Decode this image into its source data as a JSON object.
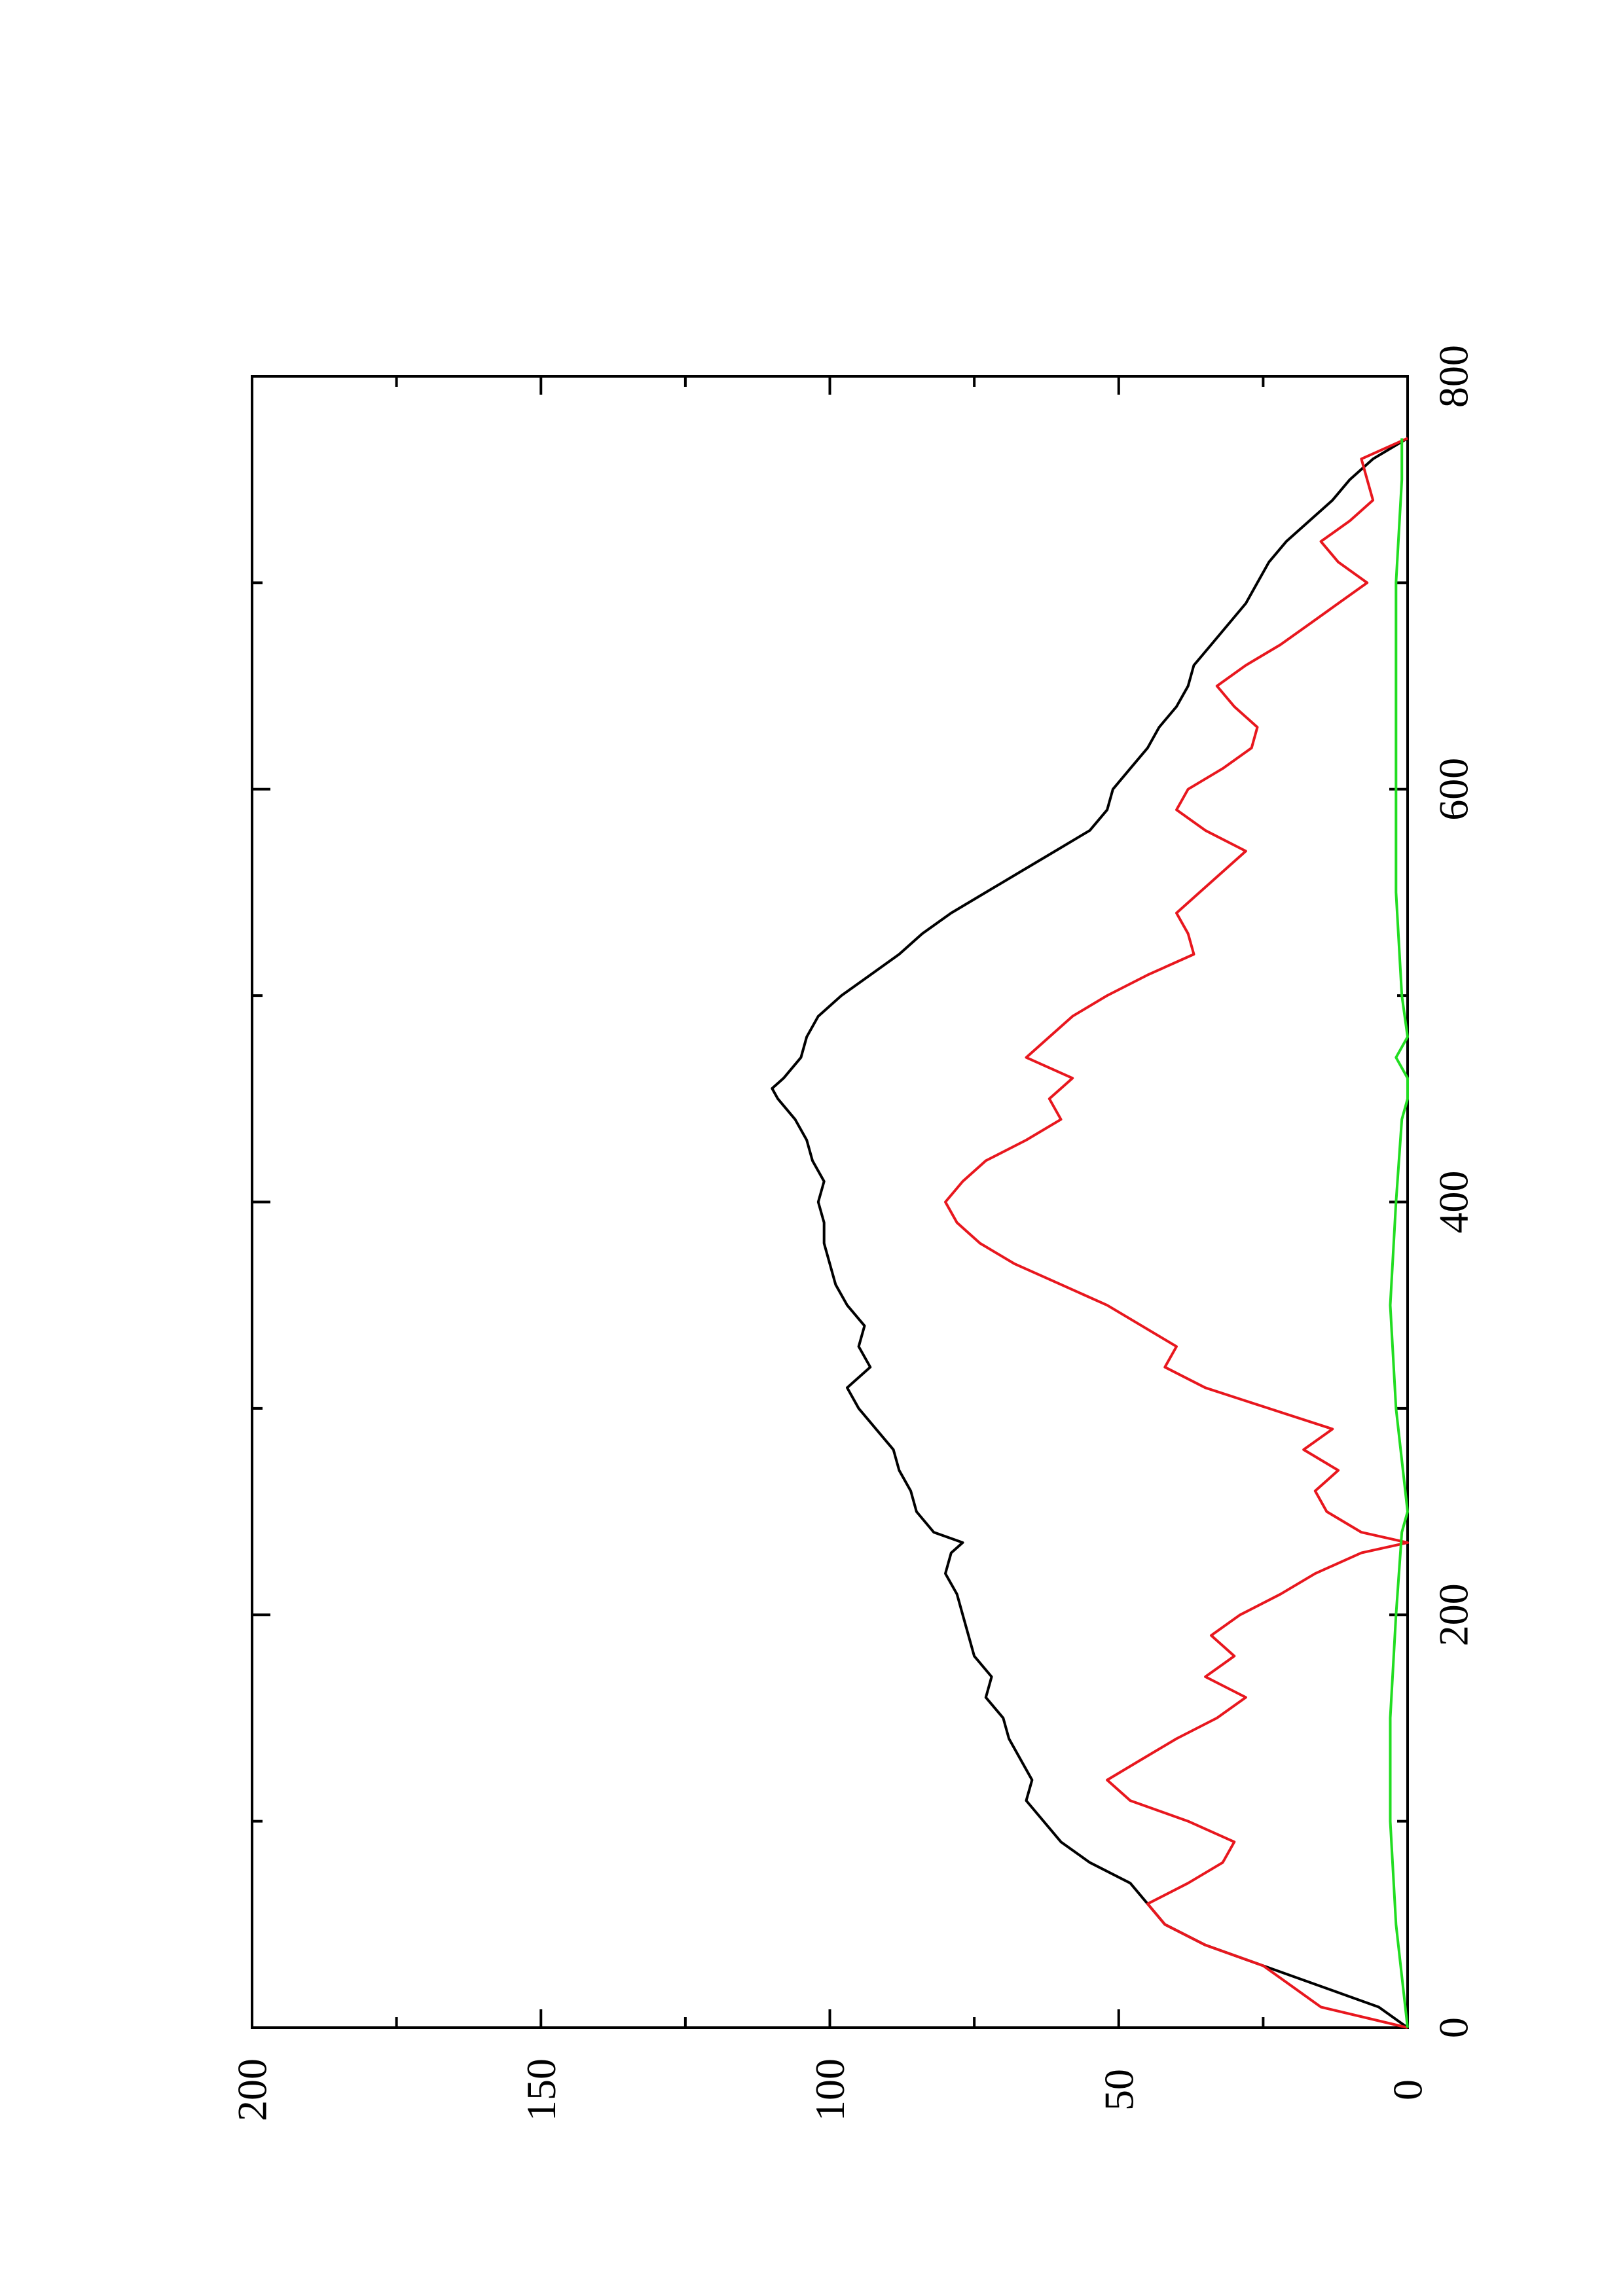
{
  "chart_data": {
    "type": "line",
    "orientation": "rotated 90 degrees counter-clockwise",
    "title": "",
    "xlabel": "",
    "ylabel": "",
    "xlim": [
      0,
      800
    ],
    "ylim": [
      0,
      200
    ],
    "x_ticks": [
      0,
      200,
      400,
      600,
      800
    ],
    "x_ticks_minor": [
      100,
      300,
      500,
      700
    ],
    "y_ticks": [
      0,
      50,
      100,
      150,
      200
    ],
    "y_ticks_minor": [
      25,
      75,
      125,
      175
    ],
    "x_tick_labels": [
      "0",
      "200",
      "400",
      "600",
      "800"
    ],
    "y_tick_labels": [
      "0",
      "50",
      "100",
      "150",
      "200"
    ],
    "grid": false,
    "legend": "none",
    "series": [
      {
        "color": "#000000",
        "x": [
          0,
          10,
          20,
          30,
          40,
          50,
          60,
          70,
          80,
          90,
          100,
          110,
          120,
          130,
          140,
          150,
          160,
          170,
          180,
          190,
          200,
          210,
          220,
          230,
          235,
          240,
          250,
          260,
          270,
          280,
          290,
          300,
          310,
          320,
          330,
          340,
          350,
          360,
          370,
          380,
          390,
          400,
          410,
          420,
          430,
          440,
          450,
          455,
          460,
          470,
          480,
          490,
          500,
          510,
          520,
          530,
          540,
          550,
          560,
          570,
          580,
          590,
          600,
          610,
          620,
          630,
          640,
          650,
          660,
          670,
          680,
          690,
          700,
          710,
          720,
          730,
          740,
          750,
          760,
          770
        ],
        "y": [
          0,
          5,
          15,
          25,
          35,
          42,
          45,
          48,
          55,
          60,
          63,
          66,
          65,
          67,
          69,
          70,
          73,
          72,
          75,
          76,
          77,
          78,
          80,
          79,
          77,
          82,
          85,
          86,
          88,
          89,
          92,
          95,
          97,
          93,
          95,
          94,
          97,
          99,
          100,
          101,
          101,
          102,
          101,
          103,
          104,
          106,
          109,
          110,
          108,
          105,
          104,
          102,
          98,
          93,
          88,
          84,
          79,
          73,
          67,
          61,
          55,
          52,
          51,
          48,
          45,
          43,
          40,
          38,
          37,
          34,
          31,
          28,
          26,
          24,
          21,
          17,
          13,
          10,
          6,
          0
        ]
      },
      {
        "color": "#e8171e",
        "x": [
          0,
          10,
          20,
          30,
          40,
          50,
          60,
          70,
          80,
          90,
          100,
          110,
          120,
          130,
          140,
          150,
          160,
          170,
          180,
          190,
          200,
          210,
          220,
          230,
          235,
          240,
          250,
          260,
          270,
          280,
          290,
          300,
          310,
          320,
          330,
          340,
          350,
          360,
          370,
          380,
          390,
          400,
          410,
          420,
          430,
          440,
          450,
          460,
          470,
          480,
          490,
          500,
          510,
          520,
          530,
          540,
          550,
          560,
          570,
          580,
          590,
          600,
          610,
          620,
          630,
          640,
          650,
          660,
          670,
          680,
          690,
          700,
          710,
          720,
          730,
          740,
          750,
          760,
          770
        ],
        "y": [
          0,
          15,
          20,
          25,
          35,
          42,
          45,
          38,
          32,
          30,
          38,
          48,
          52,
          46,
          40,
          33,
          28,
          35,
          30,
          34,
          29,
          22,
          16,
          8,
          0,
          8,
          14,
          16,
          12,
          18,
          13,
          24,
          35,
          42,
          40,
          46,
          52,
          60,
          68,
          74,
          78,
          80,
          77,
          73,
          66,
          60,
          62,
          58,
          66,
          62,
          58,
          52,
          45,
          37,
          38,
          40,
          36,
          32,
          28,
          35,
          40,
          38,
          32,
          27,
          26,
          30,
          33,
          28,
          22,
          17,
          12,
          7,
          12,
          15,
          10,
          6,
          7,
          8,
          0
        ]
      },
      {
        "color": "#22dd22",
        "x": [
          0,
          50,
          100,
          150,
          200,
          240,
          250,
          300,
          350,
          400,
          440,
          450,
          460,
          470,
          480,
          500,
          550,
          600,
          650,
          700,
          750,
          770
        ],
        "y": [
          0,
          2,
          3,
          3,
          2,
          1,
          0,
          2,
          3,
          2,
          1,
          0,
          0,
          2,
          0,
          1,
          2,
          2,
          2,
          2,
          1,
          1
        ]
      }
    ]
  }
}
